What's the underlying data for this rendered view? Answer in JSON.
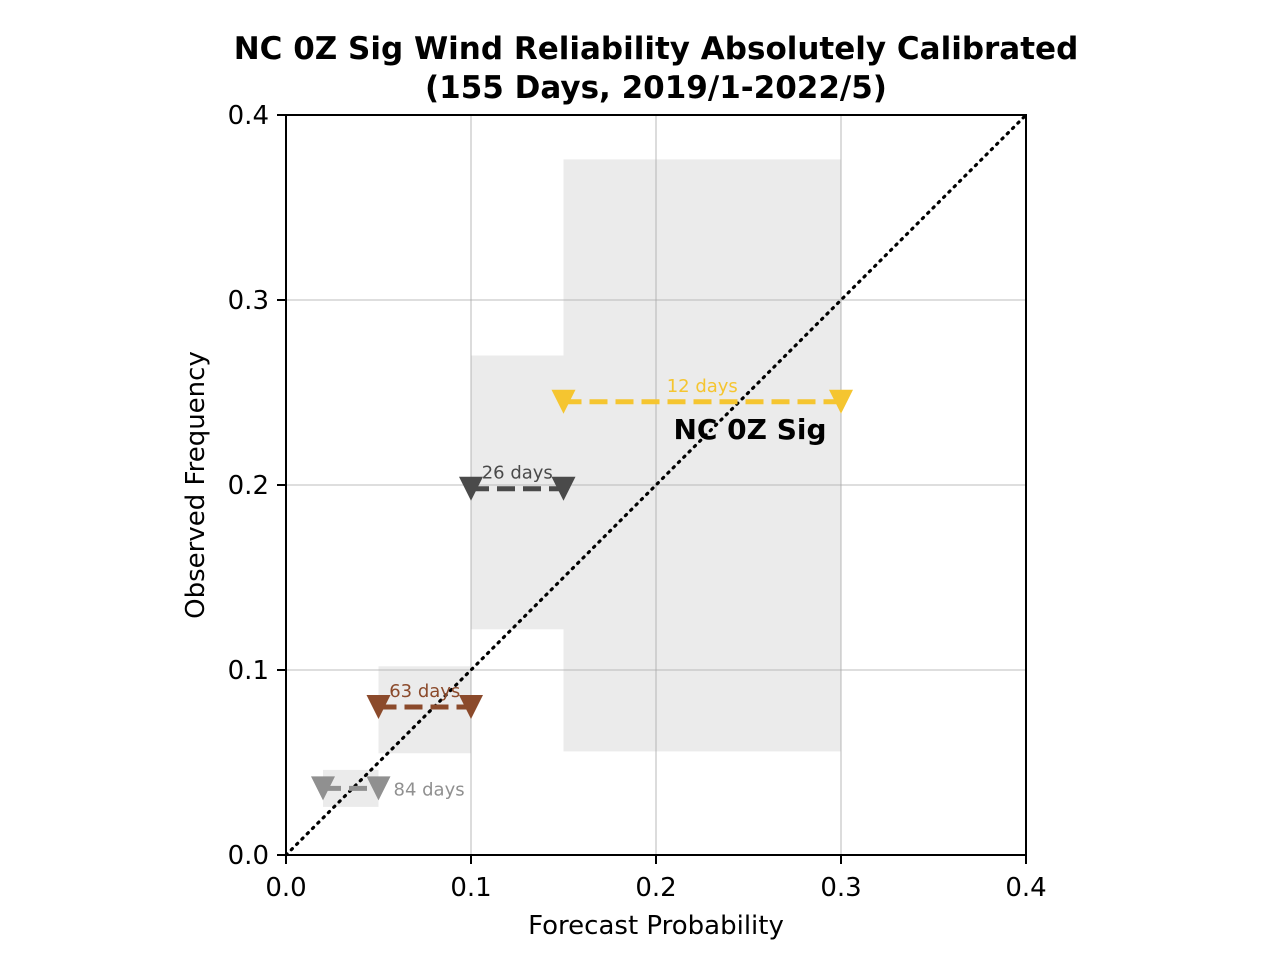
{
  "chart_data": {
    "type": "scatter",
    "title_line1": "NC 0Z Sig Wind Reliability Absolutely Calibrated",
    "title_line2": "(155 Days, 2019/1-2022/5)",
    "xlabel": "Forecast Probability",
    "ylabel": "Observed Frequency",
    "xlim": [
      0,
      0.4
    ],
    "ylim": [
      0,
      0.4
    ],
    "xticks": [
      0.0,
      0.1,
      0.2,
      0.3,
      0.4
    ],
    "yticks": [
      0.0,
      0.1,
      0.2,
      0.3,
      0.4
    ],
    "xtick_labels": [
      "0.0",
      "0.1",
      "0.2",
      "0.3",
      "0.4"
    ],
    "ytick_labels": [
      "0.0",
      "0.1",
      "0.2",
      "0.3",
      "0.4"
    ],
    "grid": true,
    "diagonal": "perfect reliability (dotted)",
    "annotation": "NC 0Z Sig",
    "bins": [
      {
        "x_low": 0.02,
        "x_high": 0.05,
        "observed": 0.036,
        "ci_low": 0.026,
        "ci_high": 0.046,
        "count_label": "84 days",
        "color": "#909090"
      },
      {
        "x_low": 0.05,
        "x_high": 0.1,
        "observed": 0.08,
        "ci_low": 0.055,
        "ci_high": 0.102,
        "count_label": "63 days",
        "color": "#8b4a2b"
      },
      {
        "x_low": 0.1,
        "x_high": 0.15,
        "observed": 0.198,
        "ci_low": 0.122,
        "ci_high": 0.27,
        "count_label": "26 days",
        "color": "#4a4a4a"
      },
      {
        "x_low": 0.15,
        "x_high": 0.3,
        "observed": 0.245,
        "ci_low": 0.056,
        "ci_high": 0.376,
        "count_label": "12 days",
        "color": "#f5c530"
      }
    ]
  }
}
